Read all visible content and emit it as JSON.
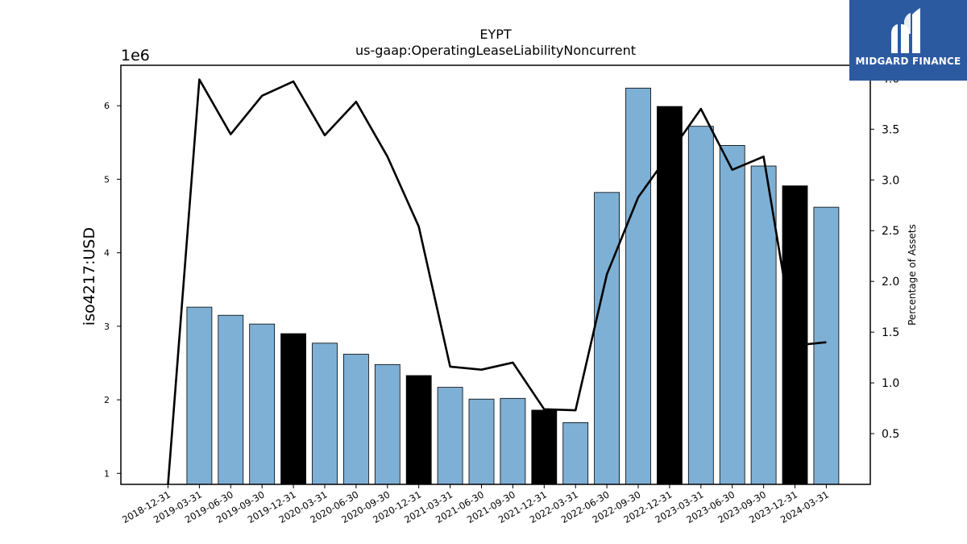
{
  "chart_data": {
    "type": "bar",
    "title": "EYPT",
    "subtitle": "us-gaap:OperatingLeaseLiabilityNoncurrent",
    "ylabel": "iso4217:USD",
    "y2label": "Percentage of Assets",
    "y_offset_text": "1e6",
    "ylim": [
      0.85,
      6.55
    ],
    "y2lim": [
      0.0,
      4.13
    ],
    "yticks": [
      "1",
      "2",
      "3",
      "4",
      "5",
      "6"
    ],
    "y2ticks": [
      "0.5",
      "1.0",
      "1.5",
      "2.0",
      "2.5",
      "3.0",
      "3.5",
      "4.0"
    ],
    "grid": false,
    "categories": [
      "2018-12-31",
      "2019-03-31",
      "2019-06-30",
      "2019-09-30",
      "2019-12-31",
      "2020-03-31",
      "2020-06-30",
      "2020-09-30",
      "2020-12-31",
      "2021-03-31",
      "2021-06-30",
      "2021-09-30",
      "2021-12-31",
      "2022-03-31",
      "2022-06-30",
      "2022-09-30",
      "2022-12-31",
      "2023-03-31",
      "2023-06-30",
      "2023-09-30",
      "2023-12-31",
      "2024-03-31"
    ],
    "series": [
      {
        "kind": "bar",
        "axis": "left",
        "unit": "1e6 USD",
        "values": [
          null,
          3.26,
          3.15,
          3.03,
          2.9,
          2.77,
          2.62,
          2.48,
          2.33,
          2.17,
          2.01,
          2.02,
          1.86,
          1.69,
          4.82,
          6.24,
          5.99,
          5.72,
          5.46,
          5.18,
          4.91,
          4.62
        ],
        "colors": [
          null,
          "#7eb0d5",
          "#7eb0d5",
          "#7eb0d5",
          "#000000",
          "#7eb0d5",
          "#7eb0d5",
          "#7eb0d5",
          "#000000",
          "#7eb0d5",
          "#7eb0d5",
          "#7eb0d5",
          "#000000",
          "#7eb0d5",
          "#7eb0d5",
          "#7eb0d5",
          "#000000",
          "#7eb0d5",
          "#7eb0d5",
          "#7eb0d5",
          "#000000",
          "#7eb0d5"
        ]
      },
      {
        "kind": "line",
        "axis": "right",
        "color": "#000000",
        "values": [
          0.0,
          3.99,
          3.45,
          3.83,
          3.97,
          3.44,
          3.77,
          3.23,
          2.54,
          1.16,
          1.13,
          1.2,
          0.74,
          0.73,
          2.07,
          2.83,
          3.26,
          3.7,
          3.1,
          3.23,
          1.37,
          1.4
        ]
      }
    ]
  },
  "logo": {
    "text": "MIDGARD FINANCE"
  }
}
